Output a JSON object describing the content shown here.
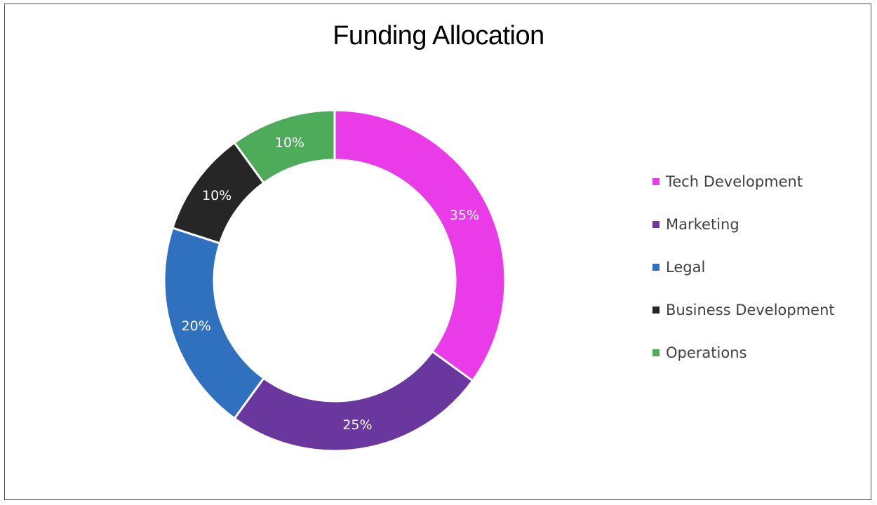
{
  "chart_data": {
    "type": "pie",
    "subtype": "doughnut",
    "title": "Funding Allocation",
    "categories": [
      "Tech Development",
      "Marketing",
      "Legal",
      "Business Development",
      "Operations"
    ],
    "values": [
      35,
      25,
      20,
      10,
      10
    ],
    "labels": [
      "35%",
      "25%",
      "20%",
      "10%",
      "10%"
    ],
    "colors": [
      "#e93be8",
      "#6a379e",
      "#2f71bf",
      "#262626",
      "#4eab5a"
    ],
    "legend_position": "right"
  }
}
